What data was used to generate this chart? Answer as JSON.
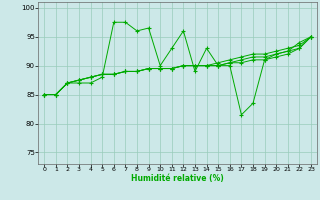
{
  "x": [
    0,
    1,
    2,
    3,
    4,
    5,
    6,
    7,
    8,
    9,
    10,
    11,
    12,
    13,
    14,
    15,
    16,
    17,
    18,
    19,
    20,
    21,
    22,
    23
  ],
  "line1": [
    85,
    85,
    87,
    87,
    87,
    88,
    97.5,
    97.5,
    96,
    96.5,
    90,
    93,
    96,
    89,
    93,
    90,
    90,
    81.5,
    83.5,
    91,
    92,
    92.5,
    94,
    95
  ],
  "line2": [
    85,
    85,
    87,
    87.5,
    88,
    88.5,
    88.5,
    89,
    89,
    89.5,
    89.5,
    89.5,
    90,
    90,
    90,
    90,
    90.5,
    91,
    91.5,
    91.5,
    92,
    92.5,
    93,
    95
  ],
  "line3": [
    85,
    85,
    87,
    87.5,
    88,
    88.5,
    88.5,
    89,
    89,
    89.5,
    89.5,
    89.5,
    90,
    90,
    90,
    90,
    90.5,
    90.5,
    91,
    91,
    91.5,
    92,
    93,
    95
  ],
  "line4": [
    85,
    85,
    87,
    87.5,
    88,
    88.5,
    88.5,
    89,
    89,
    89.5,
    89.5,
    89.5,
    90,
    90,
    90,
    90.5,
    91,
    91.5,
    92,
    92,
    92.5,
    93,
    93.5,
    95
  ],
  "bg_color": "#cce8e8",
  "grid_color": "#99ccbb",
  "line_color": "#00aa00",
  "xlabel": "Humidité relative (%)",
  "ylim": [
    73,
    101
  ],
  "xlim": [
    -0.5,
    23.5
  ],
  "yticks": [
    75,
    80,
    85,
    90,
    95,
    100
  ],
  "xticks": [
    0,
    1,
    2,
    3,
    4,
    5,
    6,
    7,
    8,
    9,
    10,
    11,
    12,
    13,
    14,
    15,
    16,
    17,
    18,
    19,
    20,
    21,
    22,
    23
  ]
}
